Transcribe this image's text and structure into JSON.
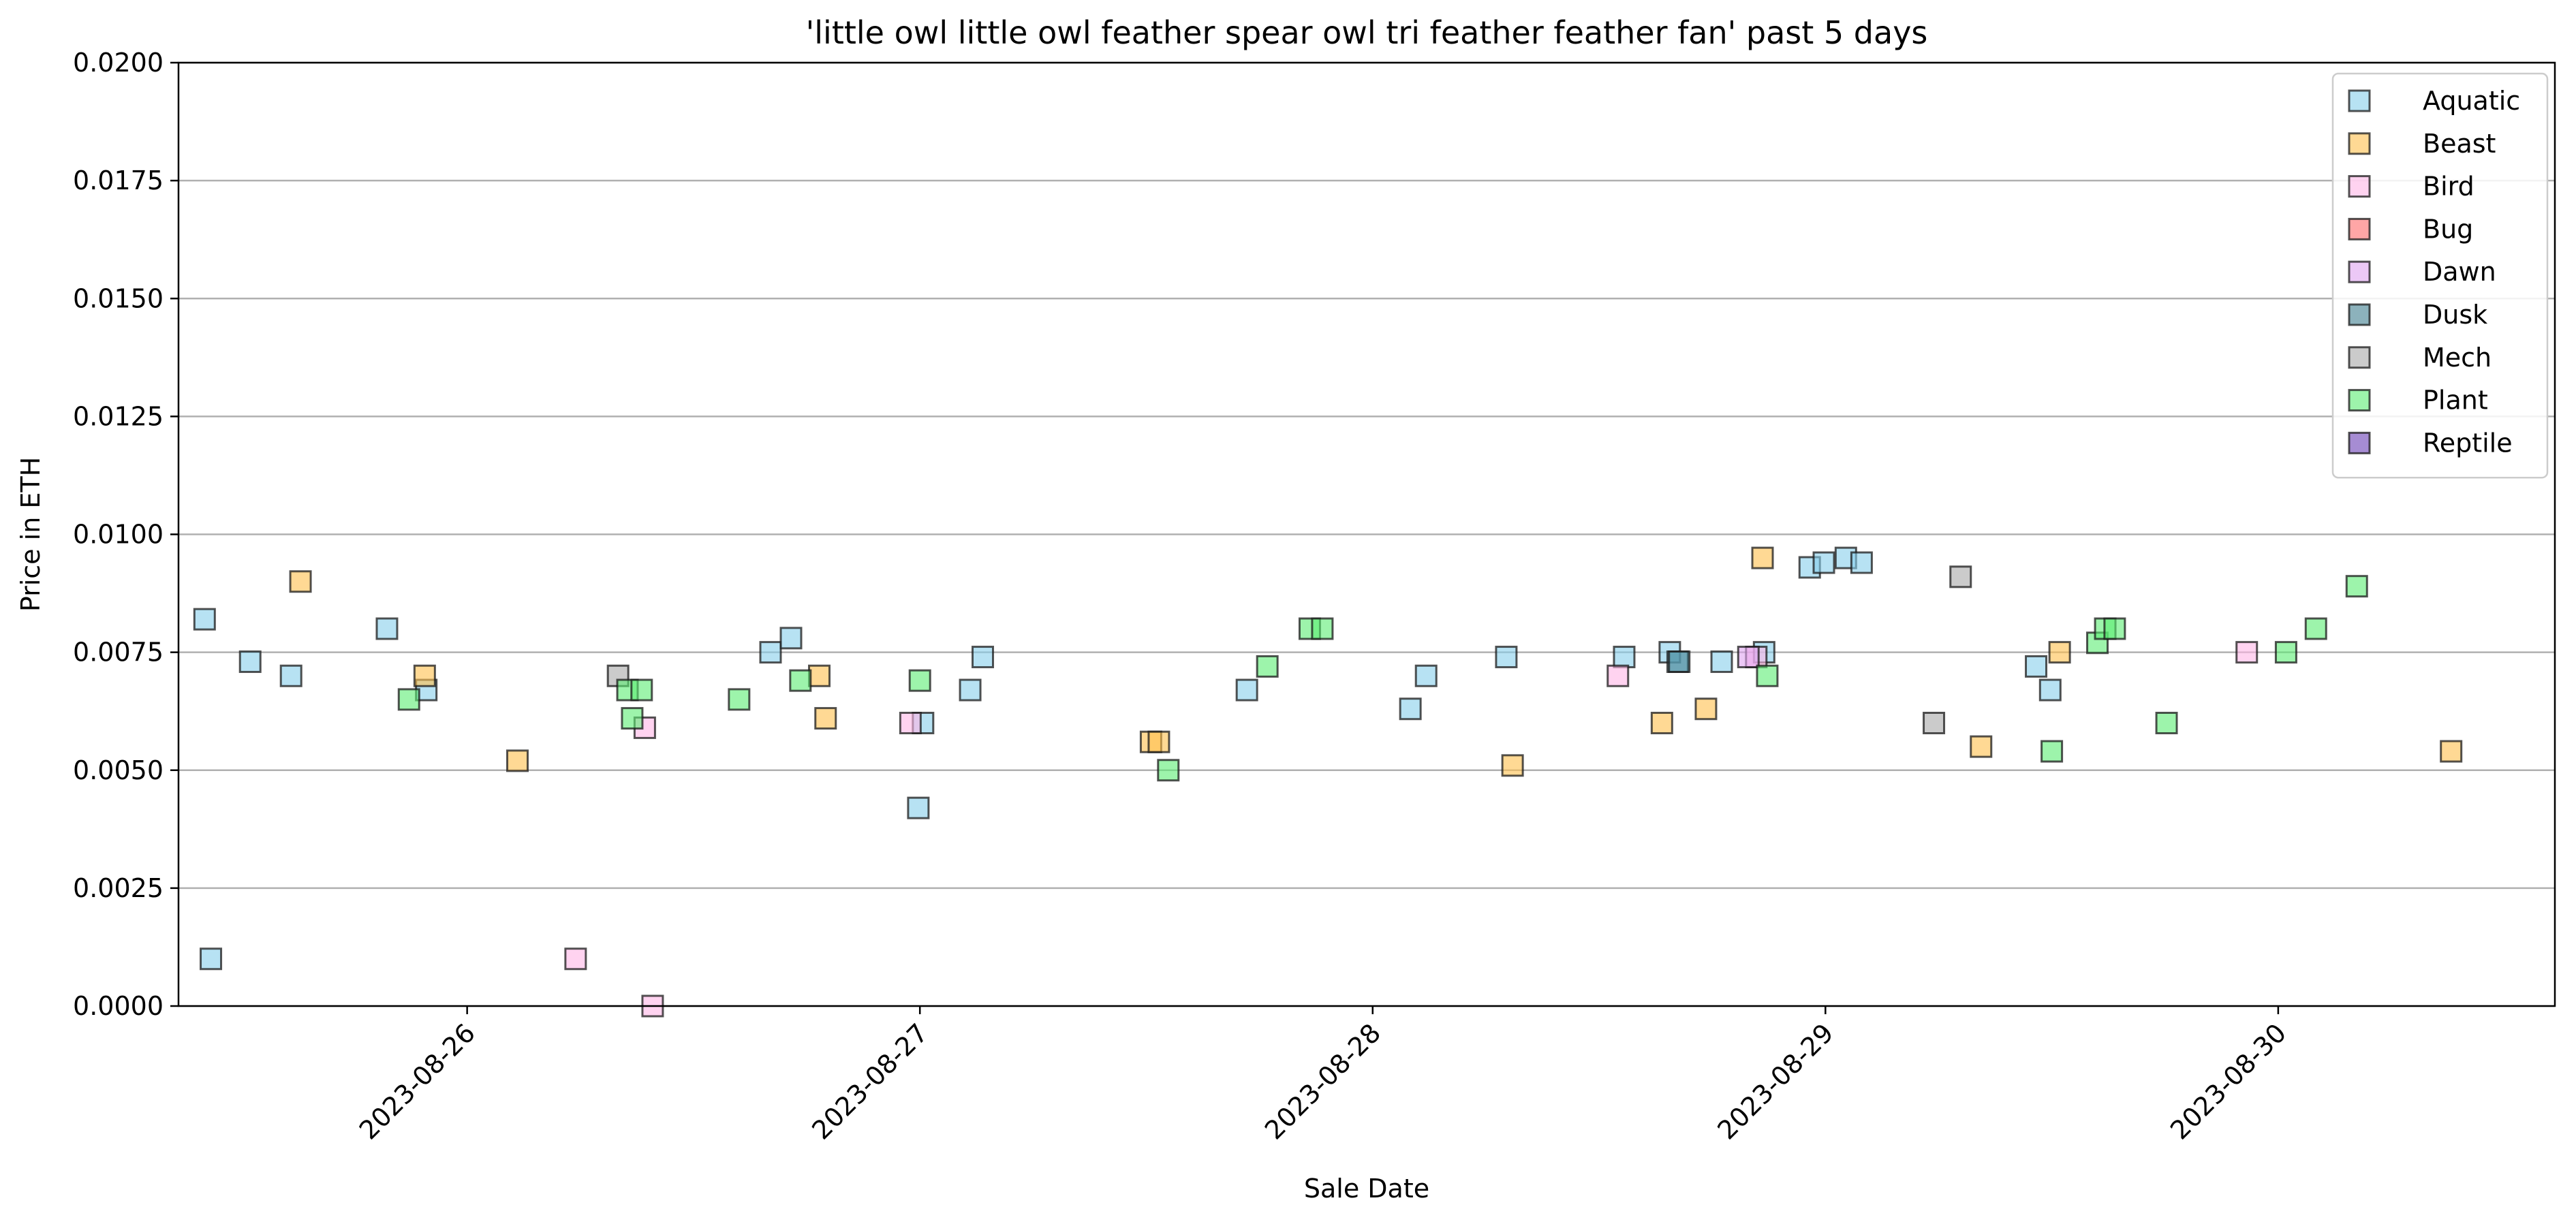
{
  "chart_data": {
    "type": "scatter",
    "title": "'little owl little owl feather spear owl tri feather feather fan' past 5 days",
    "xlabel": "Sale Date",
    "ylabel": "Price in ETH",
    "xlim": [
      "2023-08-25T08:42",
      "2023-08-30T14:40"
    ],
    "ylim": [
      0,
      0.02
    ],
    "x_ticks": [
      "2023-08-26",
      "2023-08-27",
      "2023-08-28",
      "2023-08-29",
      "2023-08-30"
    ],
    "y_ticks": [
      "0.0000",
      "0.0025",
      "0.0050",
      "0.0075",
      "0.0100",
      "0.0125",
      "0.0150",
      "0.0175",
      "0.0200"
    ],
    "grid": "horizontal",
    "legend_position": "top-right",
    "marker": "square",
    "series": [
      {
        "name": "Aquatic",
        "color": "#87ceeb",
        "points": [
          {
            "x": "2023-08-25T10:05",
            "y": 0.0082
          },
          {
            "x": "2023-08-25T10:25",
            "y": 0.001
          },
          {
            "x": "2023-08-25T12:30",
            "y": 0.0073
          },
          {
            "x": "2023-08-25T14:40",
            "y": 0.007
          },
          {
            "x": "2023-08-25T19:45",
            "y": 0.008
          },
          {
            "x": "2023-08-25T21:50",
            "y": 0.0067
          },
          {
            "x": "2023-08-26T16:05",
            "y": 0.0075
          },
          {
            "x": "2023-08-26T17:10",
            "y": 0.0078
          },
          {
            "x": "2023-08-26T23:55",
            "y": 0.0042
          },
          {
            "x": "2023-08-27T00:10",
            "y": 0.006
          },
          {
            "x": "2023-08-27T02:40",
            "y": 0.0067
          },
          {
            "x": "2023-08-27T03:20",
            "y": 0.0074
          },
          {
            "x": "2023-08-27T17:20",
            "y": 0.0067
          },
          {
            "x": "2023-08-28T02:00",
            "y": 0.0063
          },
          {
            "x": "2023-08-28T02:50",
            "y": 0.007
          },
          {
            "x": "2023-08-28T07:05",
            "y": 0.0074
          },
          {
            "x": "2023-08-28T13:20",
            "y": 0.0074
          },
          {
            "x": "2023-08-28T15:45",
            "y": 0.0075
          },
          {
            "x": "2023-08-28T16:10",
            "y": 0.0073
          },
          {
            "x": "2023-08-28T18:30",
            "y": 0.0073
          },
          {
            "x": "2023-08-28T20:45",
            "y": 0.0075
          },
          {
            "x": "2023-08-28T23:10",
            "y": 0.0093
          },
          {
            "x": "2023-08-28T23:55",
            "y": 0.0094
          },
          {
            "x": "2023-08-29T01:05",
            "y": 0.0095
          },
          {
            "x": "2023-08-29T01:55",
            "y": 0.0094
          },
          {
            "x": "2023-08-29T11:10",
            "y": 0.0072
          },
          {
            "x": "2023-08-29T11:55",
            "y": 0.0067
          }
        ]
      },
      {
        "name": "Beast",
        "color": "#ffc04d",
        "points": [
          {
            "x": "2023-08-25T15:10",
            "y": 0.009
          },
          {
            "x": "2023-08-25T21:45",
            "y": 0.007
          },
          {
            "x": "2023-08-26T02:40",
            "y": 0.0052
          },
          {
            "x": "2023-08-26T18:40",
            "y": 0.007
          },
          {
            "x": "2023-08-26T19:00",
            "y": 0.0061
          },
          {
            "x": "2023-08-27T12:15",
            "y": 0.0056
          },
          {
            "x": "2023-08-27T12:40",
            "y": 0.0056
          },
          {
            "x": "2023-08-28T07:25",
            "y": 0.0051
          },
          {
            "x": "2023-08-28T15:20",
            "y": 0.006
          },
          {
            "x": "2023-08-28T17:40",
            "y": 0.0063
          },
          {
            "x": "2023-08-28T20:40",
            "y": 0.0095
          },
          {
            "x": "2023-08-29T08:15",
            "y": 0.0055
          },
          {
            "x": "2023-08-29T12:25",
            "y": 0.0075
          },
          {
            "x": "2023-08-30T09:10",
            "y": 0.0054
          }
        ]
      },
      {
        "name": "Bird",
        "color": "#ffb6e6",
        "points": [
          {
            "x": "2023-08-26T05:45",
            "y": 0.001
          },
          {
            "x": "2023-08-26T09:25",
            "y": 0.0059
          },
          {
            "x": "2023-08-26T09:50",
            "y": 0.0
          },
          {
            "x": "2023-08-26T23:30",
            "y": 0.006
          },
          {
            "x": "2023-08-28T13:00",
            "y": 0.007
          },
          {
            "x": "2023-08-28T20:20",
            "y": 0.0074
          },
          {
            "x": "2023-08-29T22:20",
            "y": 0.0075
          }
        ]
      },
      {
        "name": "Bug",
        "color": "#ff6b6b",
        "points": []
      },
      {
        "name": "Dawn",
        "color": "#e0a3f0",
        "points": [
          {
            "x": "2023-08-28T19:55",
            "y": 0.0074
          }
        ]
      },
      {
        "name": "Dusk",
        "color": "#3f7f8f",
        "points": [
          {
            "x": "2023-08-28T16:15",
            "y": 0.0073
          }
        ]
      },
      {
        "name": "Mech",
        "color": "#a8a8a8",
        "points": [
          {
            "x": "2023-08-26T08:00",
            "y": 0.007
          },
          {
            "x": "2023-08-29T05:45",
            "y": 0.006
          },
          {
            "x": "2023-08-29T07:10",
            "y": 0.0091
          }
        ]
      },
      {
        "name": "Plant",
        "color": "#5ced73",
        "points": [
          {
            "x": "2023-08-25T20:55",
            "y": 0.0065
          },
          {
            "x": "2023-08-26T08:30",
            "y": 0.0067
          },
          {
            "x": "2023-08-26T08:45",
            "y": 0.0061
          },
          {
            "x": "2023-08-26T09:15",
            "y": 0.0067
          },
          {
            "x": "2023-08-26T14:25",
            "y": 0.0065
          },
          {
            "x": "2023-08-26T17:40",
            "y": 0.0069
          },
          {
            "x": "2023-08-27T00:00",
            "y": 0.0069
          },
          {
            "x": "2023-08-27T13:10",
            "y": 0.005
          },
          {
            "x": "2023-08-27T18:25",
            "y": 0.0072
          },
          {
            "x": "2023-08-27T20:40",
            "y": 0.008
          },
          {
            "x": "2023-08-27T21:20",
            "y": 0.008
          },
          {
            "x": "2023-08-28T20:55",
            "y": 0.007
          },
          {
            "x": "2023-08-29T12:00",
            "y": 0.0054
          },
          {
            "x": "2023-08-29T14:25",
            "y": 0.0077
          },
          {
            "x": "2023-08-29T14:50",
            "y": 0.008
          },
          {
            "x": "2023-08-29T15:20",
            "y": 0.008
          },
          {
            "x": "2023-08-29T18:05",
            "y": 0.006
          },
          {
            "x": "2023-08-30T00:25",
            "y": 0.0075
          },
          {
            "x": "2023-08-30T02:00",
            "y": 0.008
          },
          {
            "x": "2023-08-30T04:10",
            "y": 0.0089
          }
        ]
      },
      {
        "name": "Reptile",
        "color": "#6a3fb5",
        "points": []
      }
    ]
  }
}
